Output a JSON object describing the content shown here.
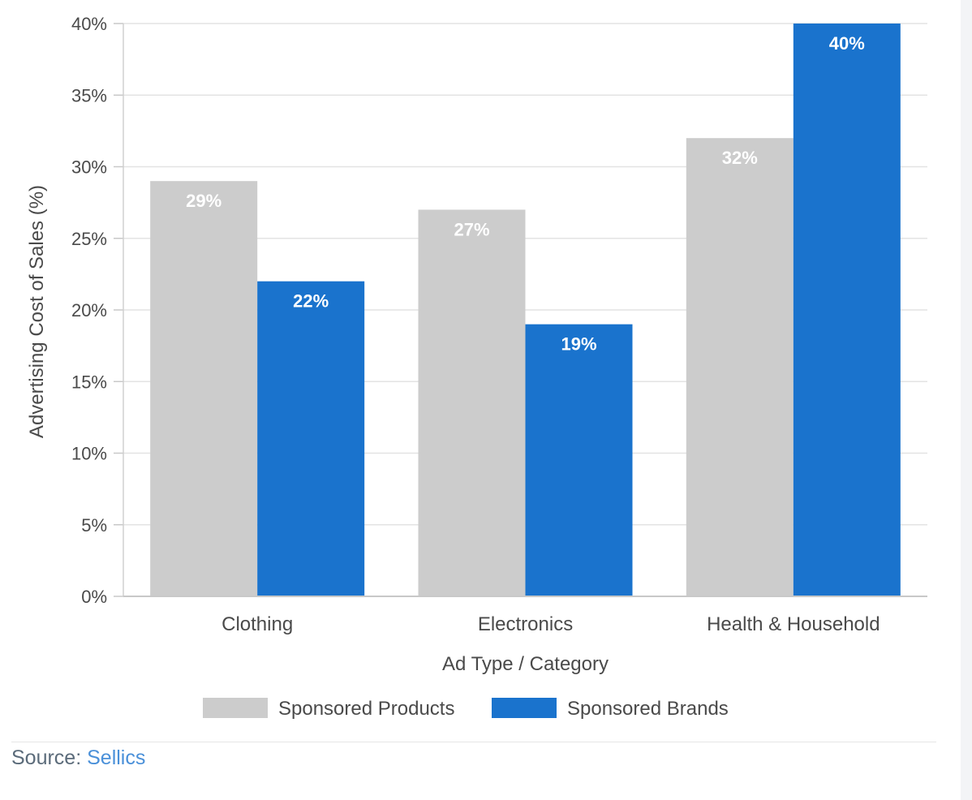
{
  "chart_data": {
    "type": "bar",
    "categories": [
      "Clothing",
      "Electronics",
      "Health & Household"
    ],
    "series": [
      {
        "name": "Sponsored Products",
        "values": [
          29,
          27,
          32
        ],
        "labels": [
          "29%",
          "27%",
          "32%"
        ],
        "color": "#cccccc"
      },
      {
        "name": "Sponsored Brands",
        "values": [
          22,
          19,
          40
        ],
        "labels": [
          "22%",
          "19%",
          "40%"
        ],
        "color": "#1a73cd"
      }
    ],
    "xlabel": "Ad Type / Category",
    "ylabel": "Advertising Cost of Sales (%)",
    "ylim": [
      0,
      40
    ],
    "yticks": [
      0,
      5,
      10,
      15,
      20,
      25,
      30,
      35,
      40
    ],
    "ytick_labels": [
      "0%",
      "5%",
      "10%",
      "15%",
      "20%",
      "25%",
      "30%",
      "35%",
      "40%"
    ],
    "grid": true,
    "legend_position": "bottom"
  },
  "source": {
    "prefix": "Source: ",
    "name": "Sellics"
  }
}
